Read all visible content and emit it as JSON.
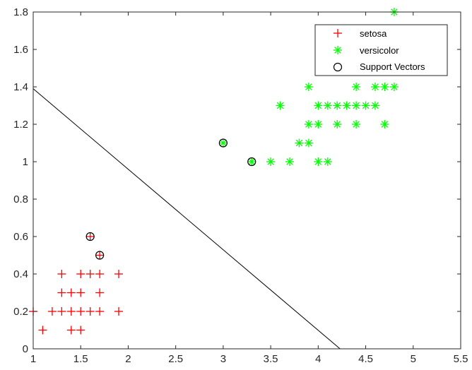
{
  "chart_data": {
    "type": "scatter",
    "xlim": [
      1,
      5.5
    ],
    "ylim": [
      0,
      1.8
    ],
    "xticks": [
      "1",
      "1.5",
      "2",
      "2.5",
      "3",
      "3.5",
      "4",
      "4.5",
      "5",
      "5.5"
    ],
    "yticks": [
      "0",
      "0.2",
      "0.4",
      "0.6",
      "0.8",
      "1",
      "1.2",
      "1.4",
      "1.6",
      "1.8"
    ],
    "grid": false,
    "legend_position": "top-right",
    "series": [
      {
        "name": "setosa",
        "marker": "plus",
        "color": "#ff0000",
        "points": [
          [
            1.1,
            0.1
          ],
          [
            1.4,
            0.1
          ],
          [
            1.5,
            0.1
          ],
          [
            1.0,
            0.2
          ],
          [
            1.2,
            0.2
          ],
          [
            1.3,
            0.2
          ],
          [
            1.4,
            0.2
          ],
          [
            1.5,
            0.2
          ],
          [
            1.6,
            0.2
          ],
          [
            1.7,
            0.2
          ],
          [
            1.9,
            0.2
          ],
          [
            1.3,
            0.3
          ],
          [
            1.4,
            0.3
          ],
          [
            1.5,
            0.3
          ],
          [
            1.7,
            0.3
          ],
          [
            1.3,
            0.4
          ],
          [
            1.5,
            0.4
          ],
          [
            1.6,
            0.4
          ],
          [
            1.7,
            0.4
          ],
          [
            1.9,
            0.4
          ],
          [
            1.7,
            0.5
          ],
          [
            1.6,
            0.6
          ]
        ]
      },
      {
        "name": "versicolor",
        "marker": "asterisk",
        "color": "#00ff00",
        "points": [
          [
            3.0,
            1.1
          ],
          [
            3.3,
            1.0
          ],
          [
            3.5,
            1.0
          ],
          [
            3.7,
            1.0
          ],
          [
            4.0,
            1.0
          ],
          [
            4.1,
            1.0
          ],
          [
            3.8,
            1.1
          ],
          [
            3.9,
            1.1
          ],
          [
            3.9,
            1.2
          ],
          [
            4.0,
            1.2
          ],
          [
            4.2,
            1.2
          ],
          [
            4.4,
            1.2
          ],
          [
            4.7,
            1.2
          ],
          [
            3.6,
            1.3
          ],
          [
            4.0,
            1.3
          ],
          [
            4.1,
            1.3
          ],
          [
            4.2,
            1.3
          ],
          [
            4.3,
            1.3
          ],
          [
            4.4,
            1.3
          ],
          [
            4.5,
            1.3
          ],
          [
            4.6,
            1.3
          ],
          [
            3.9,
            1.4
          ],
          [
            4.4,
            1.4
          ],
          [
            4.6,
            1.4
          ],
          [
            4.7,
            1.4
          ],
          [
            4.8,
            1.4
          ],
          [
            4.8,
            1.8
          ]
        ]
      },
      {
        "name": "Support Vectors",
        "marker": "circle",
        "color": "#000000",
        "points": [
          [
            1.6,
            0.6
          ],
          [
            1.7,
            0.5
          ],
          [
            3.0,
            1.1
          ],
          [
            3.3,
            1.0
          ]
        ]
      }
    ],
    "decision_boundary": {
      "color": "#000000",
      "points": [
        [
          1.0,
          1.39
        ],
        [
          4.23,
          0.0
        ]
      ]
    }
  }
}
